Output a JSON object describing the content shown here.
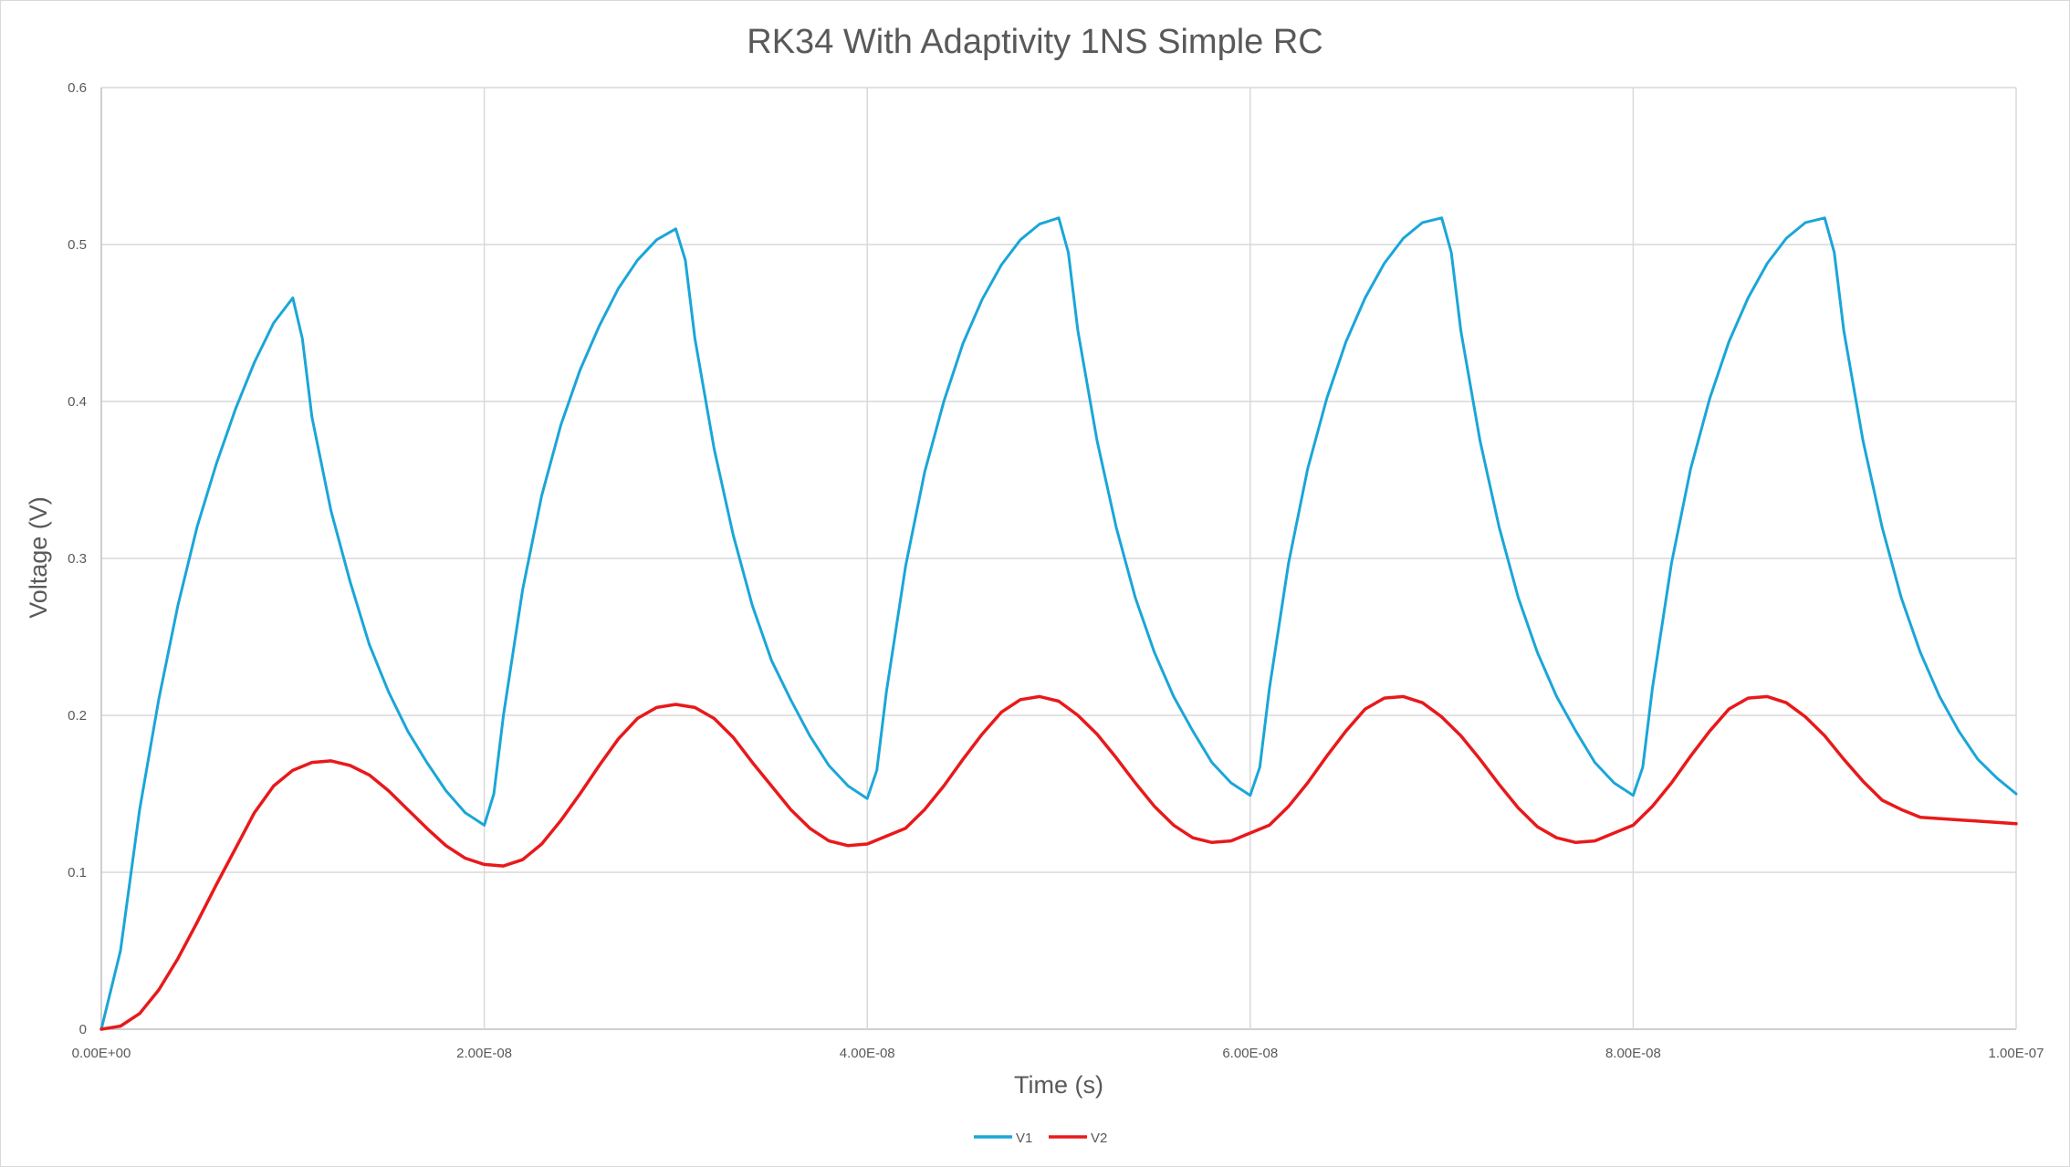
{
  "chart_data": {
    "type": "line",
    "title": "RK34 With Adaptivity 1NS Simple RC",
    "xlabel": "Time (s)",
    "ylabel": "Voltage (V)",
    "xlim": [
      0,
      1e-07
    ],
    "ylim": [
      0,
      0.6
    ],
    "x_ticks": [
      "0.00E+00",
      "2.00E-08",
      "4.00E-08",
      "6.00E-08",
      "8.00E-08",
      "1.00E-07"
    ],
    "y_ticks": [
      "0",
      "0.1",
      "0.2",
      "0.3",
      "0.4",
      "0.5",
      "0.6"
    ],
    "grid": true,
    "legend_position": "bottom",
    "series": [
      {
        "name": "V1",
        "color": "#1aa6d8",
        "points": [
          [
            0,
            0
          ],
          [
            1e-09,
            0.05
          ],
          [
            2e-09,
            0.14
          ],
          [
            3e-09,
            0.21
          ],
          [
            4e-09,
            0.27
          ],
          [
            5e-09,
            0.32
          ],
          [
            6e-09,
            0.36
          ],
          [
            7e-09,
            0.395
          ],
          [
            8e-09,
            0.425
          ],
          [
            9e-09,
            0.45
          ],
          [
            1e-08,
            0.466
          ],
          [
            1.05e-08,
            0.44
          ],
          [
            1.1e-08,
            0.39
          ],
          [
            1.2e-08,
            0.33
          ],
          [
            1.3e-08,
            0.285
          ],
          [
            1.4e-08,
            0.245
          ],
          [
            1.5e-08,
            0.215
          ],
          [
            1.6e-08,
            0.19
          ],
          [
            1.7e-08,
            0.17
          ],
          [
            1.8e-08,
            0.152
          ],
          [
            1.9e-08,
            0.138
          ],
          [
            2e-08,
            0.13
          ],
          [
            2.05e-08,
            0.15
          ],
          [
            2.1e-08,
            0.2
          ],
          [
            2.2e-08,
            0.28
          ],
          [
            2.3e-08,
            0.34
          ],
          [
            2.4e-08,
            0.385
          ],
          [
            2.5e-08,
            0.42
          ],
          [
            2.6e-08,
            0.448
          ],
          [
            2.7e-08,
            0.472
          ],
          [
            2.8e-08,
            0.49
          ],
          [
            2.9e-08,
            0.503
          ],
          [
            3e-08,
            0.51
          ],
          [
            3.05e-08,
            0.49
          ],
          [
            3.1e-08,
            0.44
          ],
          [
            3.2e-08,
            0.37
          ],
          [
            3.3e-08,
            0.315
          ],
          [
            3.4e-08,
            0.27
          ],
          [
            3.5e-08,
            0.235
          ],
          [
            3.6e-08,
            0.21
          ],
          [
            3.7e-08,
            0.187
          ],
          [
            3.8e-08,
            0.168
          ],
          [
            3.9e-08,
            0.155
          ],
          [
            4e-08,
            0.147
          ],
          [
            4.05e-08,
            0.165
          ],
          [
            4.1e-08,
            0.215
          ],
          [
            4.2e-08,
            0.295
          ],
          [
            4.3e-08,
            0.355
          ],
          [
            4.4e-08,
            0.4
          ],
          [
            4.5e-08,
            0.437
          ],
          [
            4.6e-08,
            0.465
          ],
          [
            4.7e-08,
            0.487
          ],
          [
            4.8e-08,
            0.503
          ],
          [
            4.9e-08,
            0.513
          ],
          [
            5e-08,
            0.517
          ],
          [
            5.05e-08,
            0.495
          ],
          [
            5.1e-08,
            0.445
          ],
          [
            5.2e-08,
            0.375
          ],
          [
            5.3e-08,
            0.32
          ],
          [
            5.4e-08,
            0.275
          ],
          [
            5.5e-08,
            0.24
          ],
          [
            5.6e-08,
            0.212
          ],
          [
            5.7e-08,
            0.19
          ],
          [
            5.8e-08,
            0.17
          ],
          [
            5.9e-08,
            0.157
          ],
          [
            6e-08,
            0.149
          ],
          [
            6.05e-08,
            0.167
          ],
          [
            6.1e-08,
            0.217
          ],
          [
            6.2e-08,
            0.297
          ],
          [
            6.3e-08,
            0.357
          ],
          [
            6.4e-08,
            0.402
          ],
          [
            6.5e-08,
            0.438
          ],
          [
            6.6e-08,
            0.466
          ],
          [
            6.7e-08,
            0.488
          ],
          [
            6.8e-08,
            0.504
          ],
          [
            6.9e-08,
            0.514
          ],
          [
            7e-08,
            0.517
          ],
          [
            7.05e-08,
            0.495
          ],
          [
            7.1e-08,
            0.445
          ],
          [
            7.2e-08,
            0.375
          ],
          [
            7.3e-08,
            0.32
          ],
          [
            7.4e-08,
            0.275
          ],
          [
            7.5e-08,
            0.24
          ],
          [
            7.6e-08,
            0.212
          ],
          [
            7.7e-08,
            0.19
          ],
          [
            7.8e-08,
            0.17
          ],
          [
            7.9e-08,
            0.157
          ],
          [
            8e-08,
            0.149
          ],
          [
            8.05e-08,
            0.167
          ],
          [
            8.1e-08,
            0.217
          ],
          [
            8.2e-08,
            0.297
          ],
          [
            8.3e-08,
            0.357
          ],
          [
            8.4e-08,
            0.402
          ],
          [
            8.5e-08,
            0.438
          ],
          [
            8.6e-08,
            0.466
          ],
          [
            8.7e-08,
            0.488
          ],
          [
            8.8e-08,
            0.504
          ],
          [
            8.9e-08,
            0.514
          ],
          [
            9e-08,
            0.517
          ],
          [
            9.05e-08,
            0.495
          ],
          [
            9.1e-08,
            0.445
          ],
          [
            9.2e-08,
            0.375
          ],
          [
            9.3e-08,
            0.32
          ],
          [
            9.4e-08,
            0.275
          ],
          [
            9.5e-08,
            0.24
          ],
          [
            9.6e-08,
            0.212
          ],
          [
            9.7e-08,
            0.19
          ],
          [
            9.8e-08,
            0.172
          ],
          [
            9.9e-08,
            0.16
          ],
          [
            1e-07,
            0.15
          ]
        ]
      },
      {
        "name": "V2",
        "color": "#e8191b",
        "points": [
          [
            0,
            0
          ],
          [
            1e-09,
            0.002
          ],
          [
            2e-09,
            0.01
          ],
          [
            3e-09,
            0.025
          ],
          [
            4e-09,
            0.045
          ],
          [
            5e-09,
            0.068
          ],
          [
            6e-09,
            0.092
          ],
          [
            7e-09,
            0.115
          ],
          [
            8e-09,
            0.138
          ],
          [
            9e-09,
            0.155
          ],
          [
            1e-08,
            0.165
          ],
          [
            1.1e-08,
            0.17
          ],
          [
            1.2e-08,
            0.171
          ],
          [
            1.3e-08,
            0.168
          ],
          [
            1.4e-08,
            0.162
          ],
          [
            1.5e-08,
            0.152
          ],
          [
            1.6e-08,
            0.14
          ],
          [
            1.7e-08,
            0.128
          ],
          [
            1.8e-08,
            0.117
          ],
          [
            1.9e-08,
            0.109
          ],
          [
            2e-08,
            0.105
          ],
          [
            2.1e-08,
            0.104
          ],
          [
            2.2e-08,
            0.108
          ],
          [
            2.3e-08,
            0.118
          ],
          [
            2.4e-08,
            0.133
          ],
          [
            2.5e-08,
            0.15
          ],
          [
            2.6e-08,
            0.168
          ],
          [
            2.7e-08,
            0.185
          ],
          [
            2.8e-08,
            0.198
          ],
          [
            2.9e-08,
            0.205
          ],
          [
            3e-08,
            0.207
          ],
          [
            3.1e-08,
            0.205
          ],
          [
            3.2e-08,
            0.198
          ],
          [
            3.3e-08,
            0.186
          ],
          [
            3.4e-08,
            0.17
          ],
          [
            3.5e-08,
            0.155
          ],
          [
            3.6e-08,
            0.14
          ],
          [
            3.7e-08,
            0.128
          ],
          [
            3.8e-08,
            0.12
          ],
          [
            3.9e-08,
            0.117
          ],
          [
            4e-08,
            0.118
          ],
          [
            4.2e-08,
            0.128
          ],
          [
            4.3e-08,
            0.14
          ],
          [
            4.4e-08,
            0.155
          ],
          [
            4.5e-08,
            0.172
          ],
          [
            4.6e-08,
            0.188
          ],
          [
            4.7e-08,
            0.202
          ],
          [
            4.8e-08,
            0.21
          ],
          [
            4.9e-08,
            0.212
          ],
          [
            5e-08,
            0.209
          ],
          [
            5.1e-08,
            0.2
          ],
          [
            5.2e-08,
            0.188
          ],
          [
            5.3e-08,
            0.173
          ],
          [
            5.4e-08,
            0.157
          ],
          [
            5.5e-08,
            0.142
          ],
          [
            5.6e-08,
            0.13
          ],
          [
            5.7e-08,
            0.122
          ],
          [
            5.8e-08,
            0.119
          ],
          [
            5.9e-08,
            0.12
          ],
          [
            6.1e-08,
            0.13
          ],
          [
            6.2e-08,
            0.142
          ],
          [
            6.3e-08,
            0.157
          ],
          [
            6.4e-08,
            0.174
          ],
          [
            6.5e-08,
            0.19
          ],
          [
            6.6e-08,
            0.204
          ],
          [
            6.7e-08,
            0.211
          ],
          [
            6.8e-08,
            0.212
          ],
          [
            6.9e-08,
            0.208
          ],
          [
            7e-08,
            0.199
          ],
          [
            7.1e-08,
            0.187
          ],
          [
            7.2e-08,
            0.172
          ],
          [
            7.3e-08,
            0.156
          ],
          [
            7.4e-08,
            0.141
          ],
          [
            7.5e-08,
            0.129
          ],
          [
            7.6e-08,
            0.122
          ],
          [
            7.7e-08,
            0.119
          ],
          [
            7.8e-08,
            0.12
          ],
          [
            8e-08,
            0.13
          ],
          [
            8.1e-08,
            0.142
          ],
          [
            8.2e-08,
            0.157
          ],
          [
            8.3e-08,
            0.174
          ],
          [
            8.4e-08,
            0.19
          ],
          [
            8.5e-08,
            0.204
          ],
          [
            8.6e-08,
            0.211
          ],
          [
            8.7e-08,
            0.212
          ],
          [
            8.8e-08,
            0.208
          ],
          [
            8.9e-08,
            0.199
          ],
          [
            9e-08,
            0.187
          ],
          [
            9.1e-08,
            0.172
          ],
          [
            9.2e-08,
            0.158
          ],
          [
            9.3e-08,
            0.146
          ],
          [
            9.4e-08,
            0.14
          ],
          [
            9.5e-08,
            0.135
          ],
          [
            1e-07,
            0.131
          ]
        ]
      }
    ]
  }
}
